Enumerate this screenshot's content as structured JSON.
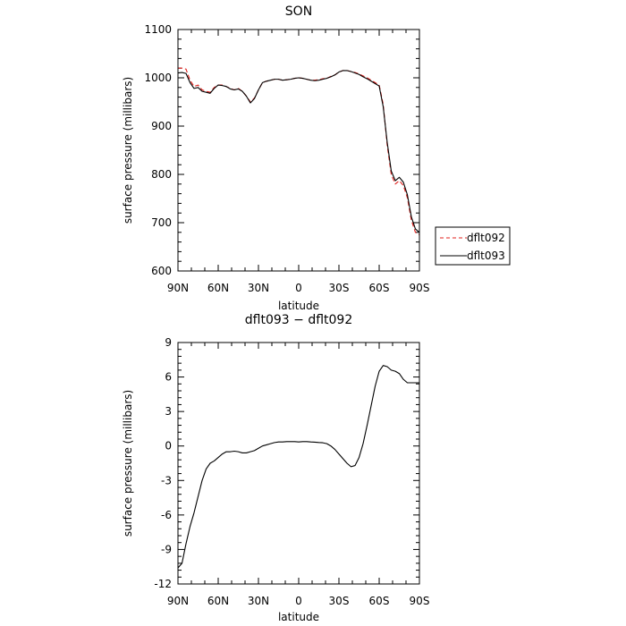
{
  "chart_data": [
    {
      "type": "line",
      "title": "SON",
      "xlabel": "latitude",
      "ylabel": "surface pressure (millibars)",
      "xticks": [
        "90N",
        "60N",
        "30N",
        "0",
        "30S",
        "60S",
        "90S"
      ],
      "ylim": [
        600,
        1100
      ],
      "yticks": [
        600,
        700,
        800,
        900,
        1000,
        1100
      ],
      "legend": "right",
      "series": [
        {
          "name": "dflt092",
          "color": "#e0201c",
          "style": "dashed",
          "x": [
            90,
            87,
            84,
            81,
            78,
            75,
            72,
            69,
            66,
            63,
            60,
            57,
            54,
            51,
            48,
            45,
            42,
            39,
            36,
            33,
            30,
            27,
            24,
            21,
            18,
            15,
            12,
            9,
            6,
            3,
            0,
            -3,
            -6,
            -9,
            -12,
            -15,
            -18,
            -21,
            -24,
            -27,
            -30,
            -33,
            -36,
            -39,
            -42,
            -45,
            -48,
            -51,
            -54,
            -57,
            -60,
            -63,
            -66,
            -69,
            -72,
            -75,
            -78,
            -81,
            -84,
            -87,
            -90
          ],
          "y": [
            1020,
            1020,
            1018,
            995,
            982,
            985,
            975,
            972,
            970,
            980,
            985,
            985,
            982,
            978,
            975,
            978,
            972,
            962,
            950,
            958,
            975,
            990,
            993,
            995,
            997,
            997,
            995,
            996,
            997,
            999,
            1000,
            999,
            997,
            995,
            995,
            996,
            998,
            999,
            1003,
            1006,
            1012,
            1015,
            1015,
            1013,
            1011,
            1008,
            1004,
            1000,
            995,
            990,
            985,
            945,
            860,
            800,
            780,
            787,
            777,
            752,
            705,
            680,
            675
          ]
        },
        {
          "name": "dflt093",
          "color": "#000000",
          "style": "solid",
          "x": [
            90,
            87,
            84,
            81,
            78,
            75,
            72,
            69,
            66,
            63,
            60,
            57,
            54,
            51,
            48,
            45,
            42,
            39,
            36,
            33,
            30,
            27,
            24,
            21,
            18,
            15,
            12,
            9,
            6,
            3,
            0,
            -3,
            -6,
            -9,
            -12,
            -15,
            -18,
            -21,
            -24,
            -27,
            -30,
            -33,
            -36,
            -39,
            -42,
            -45,
            -48,
            -51,
            -54,
            -57,
            -60,
            -63,
            -66,
            -69,
            -72,
            -75,
            -78,
            -81,
            -84,
            -87,
            -90
          ],
          "y": [
            1010,
            1011,
            1009,
            990,
            978,
            980,
            972,
            970,
            968,
            978,
            985,
            984,
            982,
            977,
            975,
            977,
            972,
            962,
            948,
            957,
            975,
            990,
            993,
            995,
            997,
            997,
            995,
            996,
            997,
            999,
            1000,
            999,
            997,
            995,
            994,
            995,
            997,
            999,
            1002,
            1006,
            1012,
            1015,
            1015,
            1013,
            1010,
            1007,
            1002,
            998,
            993,
            988,
            983,
            940,
            866,
            807,
            787,
            794,
            784,
            758,
            712,
            687,
            680
          ]
        }
      ]
    },
    {
      "type": "line",
      "title": "dflt093 − dflt092",
      "xlabel": "latitude",
      "ylabel": "surface pressure (millibars)",
      "xticks": [
        "90N",
        "60N",
        "30N",
        "0",
        "30S",
        "60S",
        "90S"
      ],
      "ylim": [
        -12,
        9
      ],
      "yticks": [
        -12,
        -9,
        -6,
        -3,
        0,
        3,
        6,
        9
      ],
      "series": [
        {
          "name": "",
          "color": "#000000",
          "style": "solid",
          "x": [
            90,
            87,
            84,
            81,
            78,
            75,
            72,
            69,
            66,
            63,
            60,
            57,
            54,
            51,
            48,
            45,
            42,
            39,
            36,
            33,
            30,
            27,
            24,
            21,
            18,
            15,
            12,
            9,
            6,
            3,
            0,
            -3,
            -6,
            -9,
            -12,
            -15,
            -18,
            -21,
            -24,
            -27,
            -30,
            -33,
            -36,
            -39,
            -42,
            -45,
            -48,
            -51,
            -54,
            -57,
            -60,
            -63,
            -66,
            -69,
            -72,
            -75,
            -78,
            -81,
            -84,
            -87,
            -90
          ],
          "y": [
            -10.6,
            -10.2,
            -8.5,
            -7.0,
            -5.8,
            -4.4,
            -3.0,
            -2.0,
            -1.5,
            -1.3,
            -1.0,
            -0.7,
            -0.5,
            -0.5,
            -0.45,
            -0.5,
            -0.6,
            -0.6,
            -0.5,
            -0.4,
            -0.2,
            0.0,
            0.1,
            0.2,
            0.3,
            0.35,
            0.35,
            0.38,
            0.38,
            0.38,
            0.35,
            0.38,
            0.38,
            0.35,
            0.33,
            0.3,
            0.28,
            0.2,
            0.0,
            -0.3,
            -0.7,
            -1.1,
            -1.5,
            -1.8,
            -1.7,
            -1.0,
            0.2,
            1.8,
            3.5,
            5.2,
            6.5,
            7.0,
            6.9,
            6.6,
            6.5,
            6.3,
            5.8,
            5.5,
            5.5,
            5.5,
            5.5
          ]
        }
      ]
    }
  ]
}
